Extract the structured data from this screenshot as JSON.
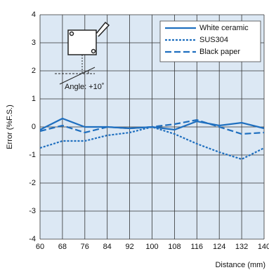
{
  "chart_data": {
    "type": "line",
    "x_label": "Distance (mm)",
    "y_label": "Error (%F.S.)",
    "annotation": "Angle: +10˚",
    "x": [
      60,
      68,
      76,
      84,
      92,
      100,
      108,
      116,
      124,
      132,
      140
    ],
    "series": [
      {
        "name": "White ceramic",
        "color": "#1f6fbf",
        "dash": "solid",
        "values": [
          -0.1,
          0.3,
          0.0,
          0.0,
          -0.05,
          0.0,
          -0.1,
          0.2,
          0.05,
          0.15,
          -0.05
        ]
      },
      {
        "name": "SUS304",
        "color": "#1f6fbf",
        "dash": "dotted",
        "values": [
          -0.75,
          -0.5,
          -0.5,
          -0.3,
          -0.2,
          0.0,
          -0.25,
          -0.6,
          -0.9,
          -1.15,
          -0.75
        ]
      },
      {
        "name": "Black paper",
        "color": "#1f6fbf",
        "dash": "dashed",
        "values": [
          -0.15,
          0.05,
          -0.2,
          0.0,
          -0.05,
          0.0,
          0.1,
          0.25,
          0.0,
          -0.25,
          -0.2
        ]
      }
    ],
    "xlim": [
      60,
      140
    ],
    "xticks": [
      60,
      68,
      76,
      84,
      92,
      100,
      108,
      116,
      124,
      132,
      140
    ],
    "ylim": [
      -4,
      4
    ],
    "yticks": [
      -4,
      -3,
      -2,
      -1,
      0,
      1,
      2,
      3,
      4
    ],
    "grid": true,
    "legend": "upper right"
  }
}
